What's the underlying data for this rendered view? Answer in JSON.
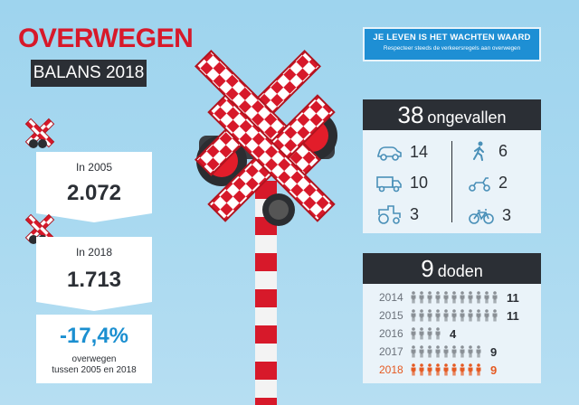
{
  "header": {
    "title": "OVERWEGEN",
    "subtitle": "BALANS 2018"
  },
  "tagline": {
    "main": "JE LEVEN IS HET WACHTEN WAARD",
    "sub": "Respecteer steeds de verkeersregels aan overwegen"
  },
  "stats": {
    "y2005_label": "In 2005",
    "y2005_value": "2.072",
    "y2018_label": "In 2018",
    "y2018_value": "1.713",
    "change_value": "-17,4%",
    "change_label_1": "overwegen",
    "change_label_2": "tussen 2005 en 2018"
  },
  "accidents": {
    "count": "38",
    "label": "ongevallen",
    "items": [
      {
        "icon": "car-icon",
        "value": "14"
      },
      {
        "icon": "truck-icon",
        "value": "10"
      },
      {
        "icon": "tractor-icon",
        "value": "3"
      },
      {
        "icon": "pedestrian-icon",
        "value": "6"
      },
      {
        "icon": "scooter-icon",
        "value": "2"
      },
      {
        "icon": "bicycle-icon",
        "value": "3"
      }
    ]
  },
  "deaths": {
    "count": "9",
    "label": "doden",
    "years": [
      {
        "year": "2014",
        "value": "11",
        "n": 11
      },
      {
        "year": "2015",
        "value": "11",
        "n": 11
      },
      {
        "year": "2016",
        "value": "4",
        "n": 4
      },
      {
        "year": "2017",
        "value": "9",
        "n": 9
      },
      {
        "year": "2018",
        "value": "9",
        "n": 9,
        "highlight": true
      }
    ]
  },
  "colors": {
    "red": "#d7192a",
    "dark": "#2b2f35",
    "blue": "#1e8fd4",
    "orange": "#e55a22",
    "grey": "#8a9096"
  }
}
